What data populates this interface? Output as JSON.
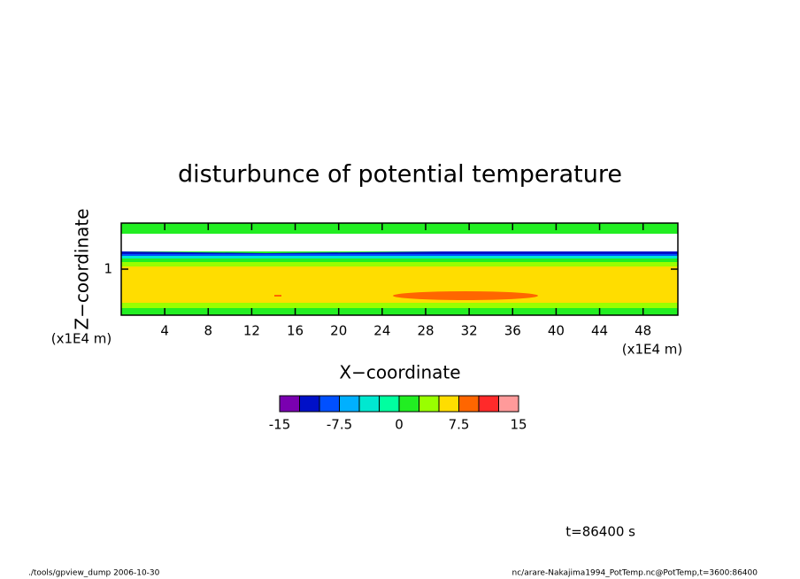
{
  "chart_data": {
    "type": "contour",
    "title": "disturbunce of potential temperature",
    "x_label": "X−coordinate",
    "y_label": "Z−coordinate",
    "x_unit": "(x1E4 m)",
    "y_unit": "(x1E4 m)",
    "xlim": [
      0,
      51.2
    ],
    "xticks": [
      4,
      8,
      12,
      16,
      20,
      24,
      28,
      32,
      36,
      40,
      44,
      48
    ],
    "ylim": [
      0.5,
      1.5
    ],
    "yticks": [
      1
    ],
    "colorbar": {
      "levels": [
        -15,
        -12.5,
        -10,
        -7.5,
        -5,
        -2.5,
        0,
        2.5,
        5,
        7.5,
        10,
        12.5,
        15
      ],
      "colors": [
        "#7a00b0",
        "#0010c8",
        "#0050ff",
        "#00b0ff",
        "#00e8d0",
        "#00ffa0",
        "#22ee22",
        "#99ff00",
        "#ffdd00",
        "#ff6600",
        "#ff2a2a",
        "#ff9a9a"
      ],
      "ticks": [
        -15,
        -7.5,
        0,
        7.5,
        15
      ]
    },
    "annotation": "t=86400 s",
    "footer_left": "./tools/gpview_dump  2006-10-30",
    "footer_right": "nc/arare-Nakajima1994_PotTemp.nc@PotTemp,t=3600:86400"
  }
}
